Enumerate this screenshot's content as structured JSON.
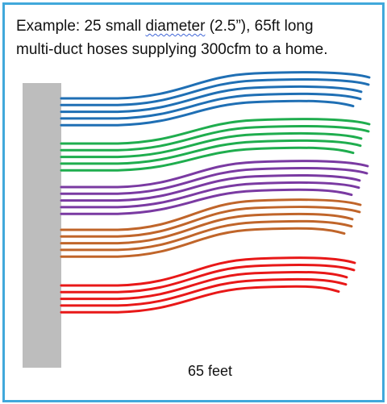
{
  "caption": {
    "part1": "Example:  25 small ",
    "part2": "diameter",
    "part3": " (2.5”), 65ft long",
    "line2": "multi-duct hoses supplying 300cfm to a home."
  },
  "length_label": "65 feet",
  "hose_count": 25,
  "hose_groups": [
    {
      "name": "blue",
      "color": "#1f6fb4",
      "count": 5
    },
    {
      "name": "green",
      "color": "#1fad4e",
      "count": 5
    },
    {
      "name": "purple",
      "color": "#7a3aa2",
      "count": 5
    },
    {
      "name": "orange",
      "color": "#c0652a",
      "count": 5
    },
    {
      "name": "red",
      "color": "#e81818",
      "count": 5
    }
  ],
  "colors": {
    "frame": "#41a8db",
    "plenum": "#bdbdbd"
  }
}
